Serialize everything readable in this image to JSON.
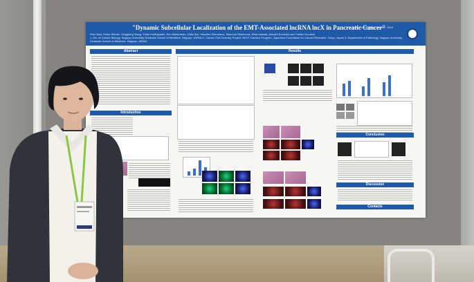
{
  "poster": {
    "title": "\"Dynamic Subcellular Localization of the EMT-Associated lncRNA lncX in Pancreatic Cancer\"",
    "published_abstract": "Published Abstract Number: 5114",
    "authors": "Sho Hioki, Keiko Shiraki, Xingqiang Wang, Yohei Kuribayashi, Ren Matsumoto, Daiki Ikki, Yasuhiro Shinohara, Tatsunori Nishimura, Mika Iwasaki, Atsushi Enomoto and Yukiko Kuroiwa",
    "affiliations": "1. Div. of Cancer Biology, Nagoya University Graduate School of Medicine, Nagoya, JAPAN   2. Cancer Cell Diversity Project, NEXT-Ganken Program, Japanese Foundation for Cancer Research, Tokyo, Japan   3. Department of Pathology, Nagoya University Graduate School of Medicine, Nagoya, JAPAN",
    "sections": {
      "abstract": "Abstract",
      "introduction": "Introduction",
      "results": "Results",
      "conclusion": "Conclusion",
      "discussion": "Discussion",
      "contacts": "Contacts"
    }
  },
  "colors": {
    "poster_header": "#1f5aa8",
    "poster_background": "#f6f6f4",
    "board": "#858480",
    "lanyard": "#8cc63f"
  }
}
